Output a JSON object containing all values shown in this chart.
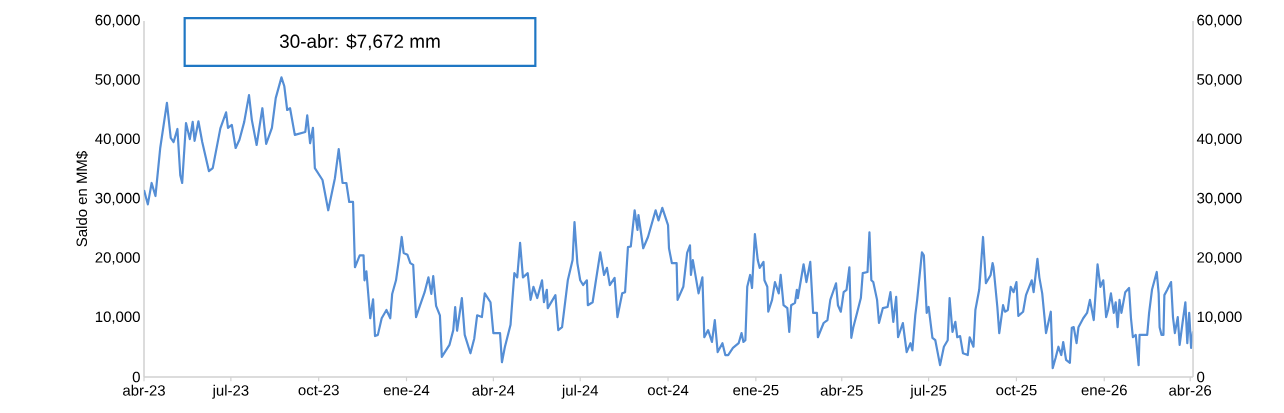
{
  "chart_data": {
    "type": "line",
    "ylabel": "Saldo en MM$",
    "annotations": [
      "30-abr: $7,672 mm"
    ],
    "series": [
      {
        "color": "#558ed5",
        "x": [
          "2023-04-01",
          "2023-04-03",
          "2023-04-05",
          "2023-04-09",
          "2023-04-13",
          "2023-04-18",
          "2023-04-25",
          "2023-04-29",
          "2023-05-02",
          "2023-05-06",
          "2023-05-09",
          "2023-05-11",
          "2023-05-15",
          "2023-05-19",
          "2023-05-22",
          "2023-05-24",
          "2023-05-28",
          "2023-06-01",
          "2023-06-08",
          "2023-06-12",
          "2023-06-20",
          "2023-06-26",
          "2023-06-28",
          "2023-07-02",
          "2023-07-06",
          "2023-07-10",
          "2023-07-15",
          "2023-07-20",
          "2023-07-23",
          "2023-07-28",
          "2023-08-03",
          "2023-08-07",
          "2023-08-13",
          "2023-08-17",
          "2023-08-23",
          "2023-08-26",
          "2023-08-29",
          "2023-09-01",
          "2023-09-06",
          "2023-09-17",
          "2023-09-19",
          "2023-09-22",
          "2023-09-25",
          "2023-09-27",
          "2023-10-05",
          "2023-10-11",
          "2023-10-18",
          "2023-10-22",
          "2023-10-26",
          "2023-10-30",
          "2023-11-02",
          "2023-11-06",
          "2023-11-08",
          "2023-11-13",
          "2023-11-17",
          "2023-11-18",
          "2023-11-20",
          "2023-11-24",
          "2023-11-27",
          "2023-11-29",
          "2023-12-02",
          "2023-12-06",
          "2023-12-11",
          "2023-12-15",
          "2023-12-17",
          "2023-12-21",
          "2023-12-24",
          "2023-12-27",
          "2023-12-29",
          "2024-01-02",
          "2024-01-05",
          "2024-01-08",
          "2024-01-11",
          "2024-01-15",
          "2024-01-20",
          "2024-01-24",
          "2024-01-27",
          "2024-01-29",
          "2024-02-01",
          "2024-02-05",
          "2024-02-07",
          "2024-02-15",
          "2024-02-19",
          "2024-02-21",
          "2024-02-23",
          "2024-02-28",
          "2024-03-02",
          "2024-03-08",
          "2024-03-12",
          "2024-03-15",
          "2024-03-20",
          "2024-03-23",
          "2024-03-29",
          "2024-04-01",
          "2024-04-08",
          "2024-04-10",
          "2024-04-13",
          "2024-04-19",
          "2024-04-23",
          "2024-04-26",
          "2024-04-29",
          "2024-05-02",
          "2024-05-07",
          "2024-05-10",
          "2024-05-13",
          "2024-05-17",
          "2024-05-22",
          "2024-05-24",
          "2024-05-27",
          "2024-05-28",
          "2024-06-05",
          "2024-06-08",
          "2024-06-12",
          "2024-06-18",
          "2024-06-23",
          "2024-06-25",
          "2024-06-28",
          "2024-07-01",
          "2024-07-04",
          "2024-07-08",
          "2024-07-09",
          "2024-07-14",
          "2024-07-17",
          "2024-07-22",
          "2024-07-26",
          "2024-07-29",
          "2024-08-01",
          "2024-08-06",
          "2024-08-09",
          "2024-08-14",
          "2024-08-17",
          "2024-08-20",
          "2024-08-23",
          "2024-08-27",
          "2024-08-30",
          "2024-08-31",
          "2024-09-05",
          "2024-09-10",
          "2024-09-18",
          "2024-09-21",
          "2024-09-25",
          "2024-10-01",
          "2024-10-02",
          "2024-10-05",
          "2024-10-10",
          "2024-10-11",
          "2024-10-17",
          "2024-10-21",
          "2024-10-24",
          "2024-10-25",
          "2024-10-27",
          "2024-11-02",
          "2024-11-06",
          "2024-11-08",
          "2024-11-12",
          "2024-11-16",
          "2024-11-19",
          "2024-11-22",
          "2024-11-27",
          "2024-11-30",
          "2024-12-03",
          "2024-12-08",
          "2024-12-14",
          "2024-12-17",
          "2024-12-19",
          "2024-12-21",
          "2024-12-23",
          "2024-12-26",
          "2024-12-28",
          "2024-12-31",
          "2025-01-03",
          "2025-01-05",
          "2025-01-09",
          "2025-01-10",
          "2025-01-13",
          "2025-01-14",
          "2025-01-18",
          "2025-01-21",
          "2025-01-25",
          "2025-01-27",
          "2025-01-30",
          "2025-02-03",
          "2025-02-05",
          "2025-02-07",
          "2025-02-11",
          "2025-02-13",
          "2025-02-14",
          "2025-02-20",
          "2025-02-23",
          "2025-02-27",
          "2025-03-02",
          "2025-03-06",
          "2025-03-07",
          "2025-03-13",
          "2025-03-17",
          "2025-03-20",
          "2025-03-26",
          "2025-03-28",
          "2025-03-31",
          "2025-04-03",
          "2025-04-06",
          "2025-04-09",
          "2025-04-11",
          "2025-04-13",
          "2025-04-17",
          "2025-04-21",
          "2025-04-23",
          "2025-04-28",
          "2025-04-30",
          "2025-05-02",
          "2025-05-04",
          "2025-05-08",
          "2025-05-10",
          "2025-05-14",
          "2025-05-19",
          "2025-05-22",
          "2025-05-25",
          "2025-05-28",
          "2025-05-30",
          "2025-06-04",
          "2025-06-08",
          "2025-06-12",
          "2025-06-14",
          "2025-06-17",
          "2025-06-19",
          "2025-06-24",
          "2025-06-26",
          "2025-06-29",
          "2025-07-01",
          "2025-07-05",
          "2025-07-08",
          "2025-07-13",
          "2025-07-17",
          "2025-07-21",
          "2025-07-23",
          "2025-07-26",
          "2025-07-29",
          "2025-07-31",
          "2025-08-03",
          "2025-08-06",
          "2025-08-11",
          "2025-08-13",
          "2025-08-17",
          "2025-08-19",
          "2025-08-23",
          "2025-08-27",
          "2025-08-30",
          "2025-09-04",
          "2025-09-06",
          "2025-09-07",
          "2025-09-11",
          "2025-09-13",
          "2025-09-17",
          "2025-09-19",
          "2025-09-22",
          "2025-09-25",
          "2025-09-28",
          "2025-10-01",
          "2025-10-03",
          "2025-10-08",
          "2025-10-11",
          "2025-10-17",
          "2025-10-19",
          "2025-10-23",
          "2025-10-25",
          "2025-10-28",
          "2025-11-01",
          "2025-11-06",
          "2025-11-08",
          "2025-11-11",
          "2025-11-14",
          "2025-11-17",
          "2025-11-19",
          "2025-11-22",
          "2025-11-26",
          "2025-11-28",
          "2025-11-30",
          "2025-12-03",
          "2025-12-05",
          "2025-12-10",
          "2025-12-14",
          "2025-12-17",
          "2025-12-21",
          "2025-12-25",
          "2025-12-28",
          "2025-12-31",
          "2026-01-03",
          "2026-01-05",
          "2026-01-08",
          "2026-01-11",
          "2026-01-13",
          "2026-01-15",
          "2026-01-17",
          "2026-01-19",
          "2026-01-23",
          "2026-01-27",
          "2026-01-29",
          "2026-01-31",
          "2026-02-03",
          "2026-02-06",
          "2026-02-07",
          "2026-02-15",
          "2026-02-17",
          "2026-02-20",
          "2026-02-25",
          "2026-02-27",
          "2026-02-28",
          "2026-03-02",
          "2026-03-04",
          "2026-03-05",
          "2026-03-08",
          "2026-03-12",
          "2026-03-14",
          "2026-03-16",
          "2026-03-19",
          "2026-03-21",
          "2026-03-24",
          "2026-03-27",
          "2026-03-29",
          "2026-03-31",
          "2026-04-02",
          "2026-04-04"
        ],
        "values": [
          31500,
          30300,
          29100,
          32700,
          30500,
          38600,
          46200,
          40300,
          39600,
          41800,
          34000,
          32700,
          42800,
          40100,
          43000,
          39800,
          43100,
          39600,
          34700,
          35200,
          41900,
          44600,
          42000,
          42500,
          38600,
          40000,
          43000,
          47500,
          43300,
          39100,
          45300,
          39300,
          42000,
          47000,
          50500,
          49000,
          45000,
          45300,
          40800,
          41300,
          44100,
          39400,
          42000,
          35200,
          33200,
          28100,
          33500,
          38400,
          32700,
          32700,
          29500,
          29500,
          18500,
          20500,
          20500,
          16300,
          17800,
          9900,
          13100,
          6900,
          7100,
          9900,
          11300,
          9900,
          14000,
          16300,
          19700,
          23600,
          20900,
          20600,
          19200,
          18900,
          10100,
          12000,
          14300,
          16800,
          14000,
          17000,
          12000,
          10400,
          3400,
          5400,
          7900,
          11800,
          7800,
          13300,
          7100,
          4000,
          6500,
          10400,
          10100,
          14100,
          12600,
          7400,
          7400,
          2500,
          5000,
          8800,
          17500,
          16800,
          22600,
          16800,
          17500,
          13000,
          15200,
          13300,
          16300,
          12600,
          14700,
          11600,
          13800,
          7900,
          8400,
          16300,
          19700,
          26100,
          19200,
          16300,
          15500,
          16300,
          12100,
          12600,
          15800,
          21000,
          17200,
          18400,
          15500,
          16700,
          10100,
          14100,
          14300,
          21900,
          22000,
          28100,
          24800,
          27300,
          21700,
          23600,
          28100,
          26400,
          28500,
          25600,
          21700,
          19200,
          19200,
          13000,
          15200,
          20900,
          22200,
          17200,
          19700,
          14100,
          16800,
          6700,
          7900,
          5900,
          9600,
          4200,
          5700,
          3700,
          3700,
          4900,
          5700,
          7400,
          5900,
          6200,
          15200,
          17200,
          15000,
          24100,
          19700,
          18400,
          19400,
          16300,
          15200,
          11000,
          13000,
          16000,
          14100,
          17200,
          12100,
          11600,
          7600,
          12100,
          12500,
          14700,
          13300,
          19000,
          16000,
          19400,
          10800,
          10800,
          6700,
          9100,
          9600,
          13000,
          15800,
          12100,
          11000,
          14300,
          14700,
          18500,
          6600,
          8300,
          10800,
          13300,
          17500,
          17700,
          24400,
          16300,
          16000,
          13000,
          9100,
          11600,
          11800,
          14300,
          9300,
          13500,
          6700,
          9100,
          4200,
          5700,
          4500,
          10400,
          13000,
          21000,
          20500,
          10800,
          11800,
          6600,
          6200,
          2000,
          5100,
          6200,
          13300,
          7600,
          9300,
          6700,
          6900,
          4000,
          3700,
          6700,
          5100,
          11300,
          14700,
          23600,
          15800,
          17200,
          19200,
          18500,
          11800,
          7400,
          12100,
          11000,
          11300,
          15200,
          14300,
          16000,
          10300,
          11000,
          13800,
          16300,
          14300,
          19900,
          16800,
          14100,
          7400,
          11000,
          1500,
          3200,
          5100,
          3700,
          5900,
          2900,
          2400,
          8300,
          8400,
          5700,
          8400,
          9900,
          10800,
          13000,
          9600,
          19000,
          15200,
          16300,
          10100,
          11300,
          14100,
          10800,
          12600,
          8400,
          13000,
          10800,
          14300,
          15000,
          9900,
          6700,
          7100,
          2000,
          7100,
          7100,
          10800,
          14700,
          17700,
          14100,
          8400,
          7100,
          7100,
          13800,
          14700,
          16000,
          10100,
          7400,
          10100,
          5400,
          9100,
          12600,
          5700,
          10800,
          4900,
          7700
        ]
      }
    ],
    "xlim": [
      "2023-04-01",
      "2026-04-04"
    ],
    "xticks": [
      {
        "value": "2023-04-01",
        "label": "abr-23"
      },
      {
        "value": "2023-07-01",
        "label": "jul-23"
      },
      {
        "value": "2023-10-01",
        "label": "oct-23"
      },
      {
        "value": "2024-01-01",
        "label": "ene-24"
      },
      {
        "value": "2024-04-01",
        "label": "abr-24"
      },
      {
        "value": "2024-07-01",
        "label": "jul-24"
      },
      {
        "value": "2024-10-01",
        "label": "oct-24"
      },
      {
        "value": "2025-01-01",
        "label": "ene-25"
      },
      {
        "value": "2025-04-01",
        "label": "abr-25"
      },
      {
        "value": "2025-07-01",
        "label": "jul-25"
      },
      {
        "value": "2025-10-01",
        "label": "oct-25"
      },
      {
        "value": "2026-01-01",
        "label": "ene-26"
      },
      {
        "value": "2026-04-01",
        "label": "abr-26"
      }
    ],
    "ylim": [
      0,
      60000
    ],
    "yticks": [
      {
        "value": 0,
        "label": "0"
      },
      {
        "value": 10000,
        "label": "10,000"
      },
      {
        "value": 20000,
        "label": "20,000"
      },
      {
        "value": 30000,
        "label": "30,000"
      },
      {
        "value": 40000,
        "label": "40,000"
      },
      {
        "value": 50000,
        "label": "50,000"
      },
      {
        "value": 60000,
        "label": "60,000"
      }
    ],
    "y2lim": [
      0,
      60000
    ],
    "y2ticks": [
      {
        "value": 0,
        "label": "0"
      },
      {
        "value": 10000,
        "label": "10,000"
      },
      {
        "value": 20000,
        "label": "20,000"
      },
      {
        "value": 30000,
        "label": "30,000"
      },
      {
        "value": 40000,
        "label": "40,000"
      },
      {
        "value": 50000,
        "label": "50,000"
      },
      {
        "value": 60000,
        "label": "60,000"
      }
    ],
    "grid": false,
    "legend": false
  }
}
